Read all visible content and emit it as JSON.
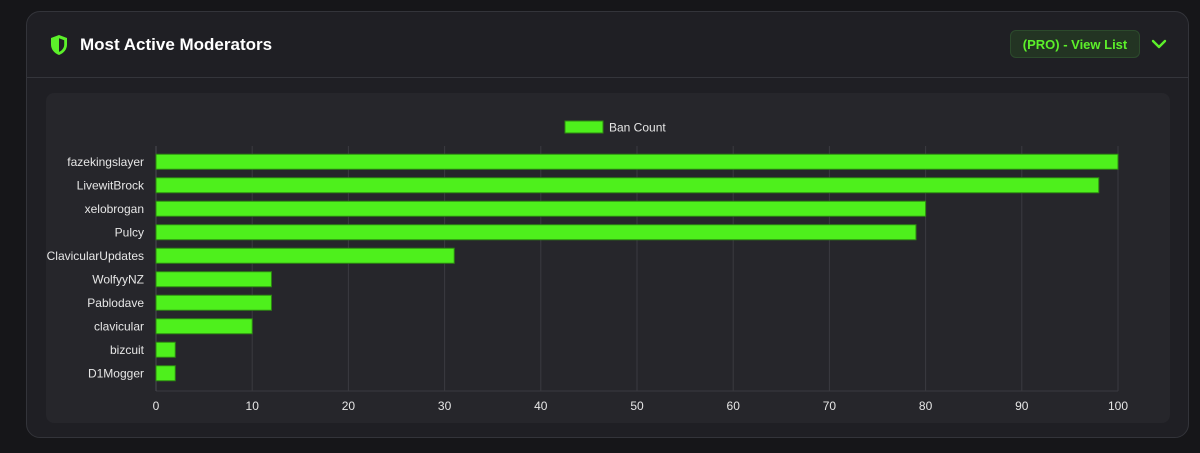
{
  "header": {
    "title": "Most Active Moderators",
    "view_button_label": "(PRO) - View List",
    "shield_icon": "shield-icon",
    "chevron_icon": "chevron-down-icon"
  },
  "colors": {
    "accent": "#5cf02a",
    "bar_fill": "#4ef01c",
    "bar_border": "#2d8a12",
    "grid": "#3a3a40",
    "text": "#e6e6e6"
  },
  "chart_data": {
    "type": "bar",
    "orientation": "horizontal",
    "categories": [
      "fazekingslayer",
      "LivewitBrock",
      "xelobrogan",
      "Pulcy",
      "ClavicularUpdates",
      "WolfyyNZ",
      "Pablodave",
      "clavicular",
      "bizcuit",
      "D1Mogger"
    ],
    "series": [
      {
        "name": "Ban Count",
        "values": [
          100,
          98,
          80,
          79,
          31,
          12,
          12,
          10,
          2,
          2
        ]
      }
    ],
    "xlim": [
      0,
      100
    ],
    "xticks": [
      0,
      10,
      20,
      30,
      40,
      50,
      60,
      70,
      80,
      90,
      100
    ],
    "legend": "top-center",
    "grid": true,
    "title": "",
    "xlabel": "",
    "ylabel": ""
  }
}
